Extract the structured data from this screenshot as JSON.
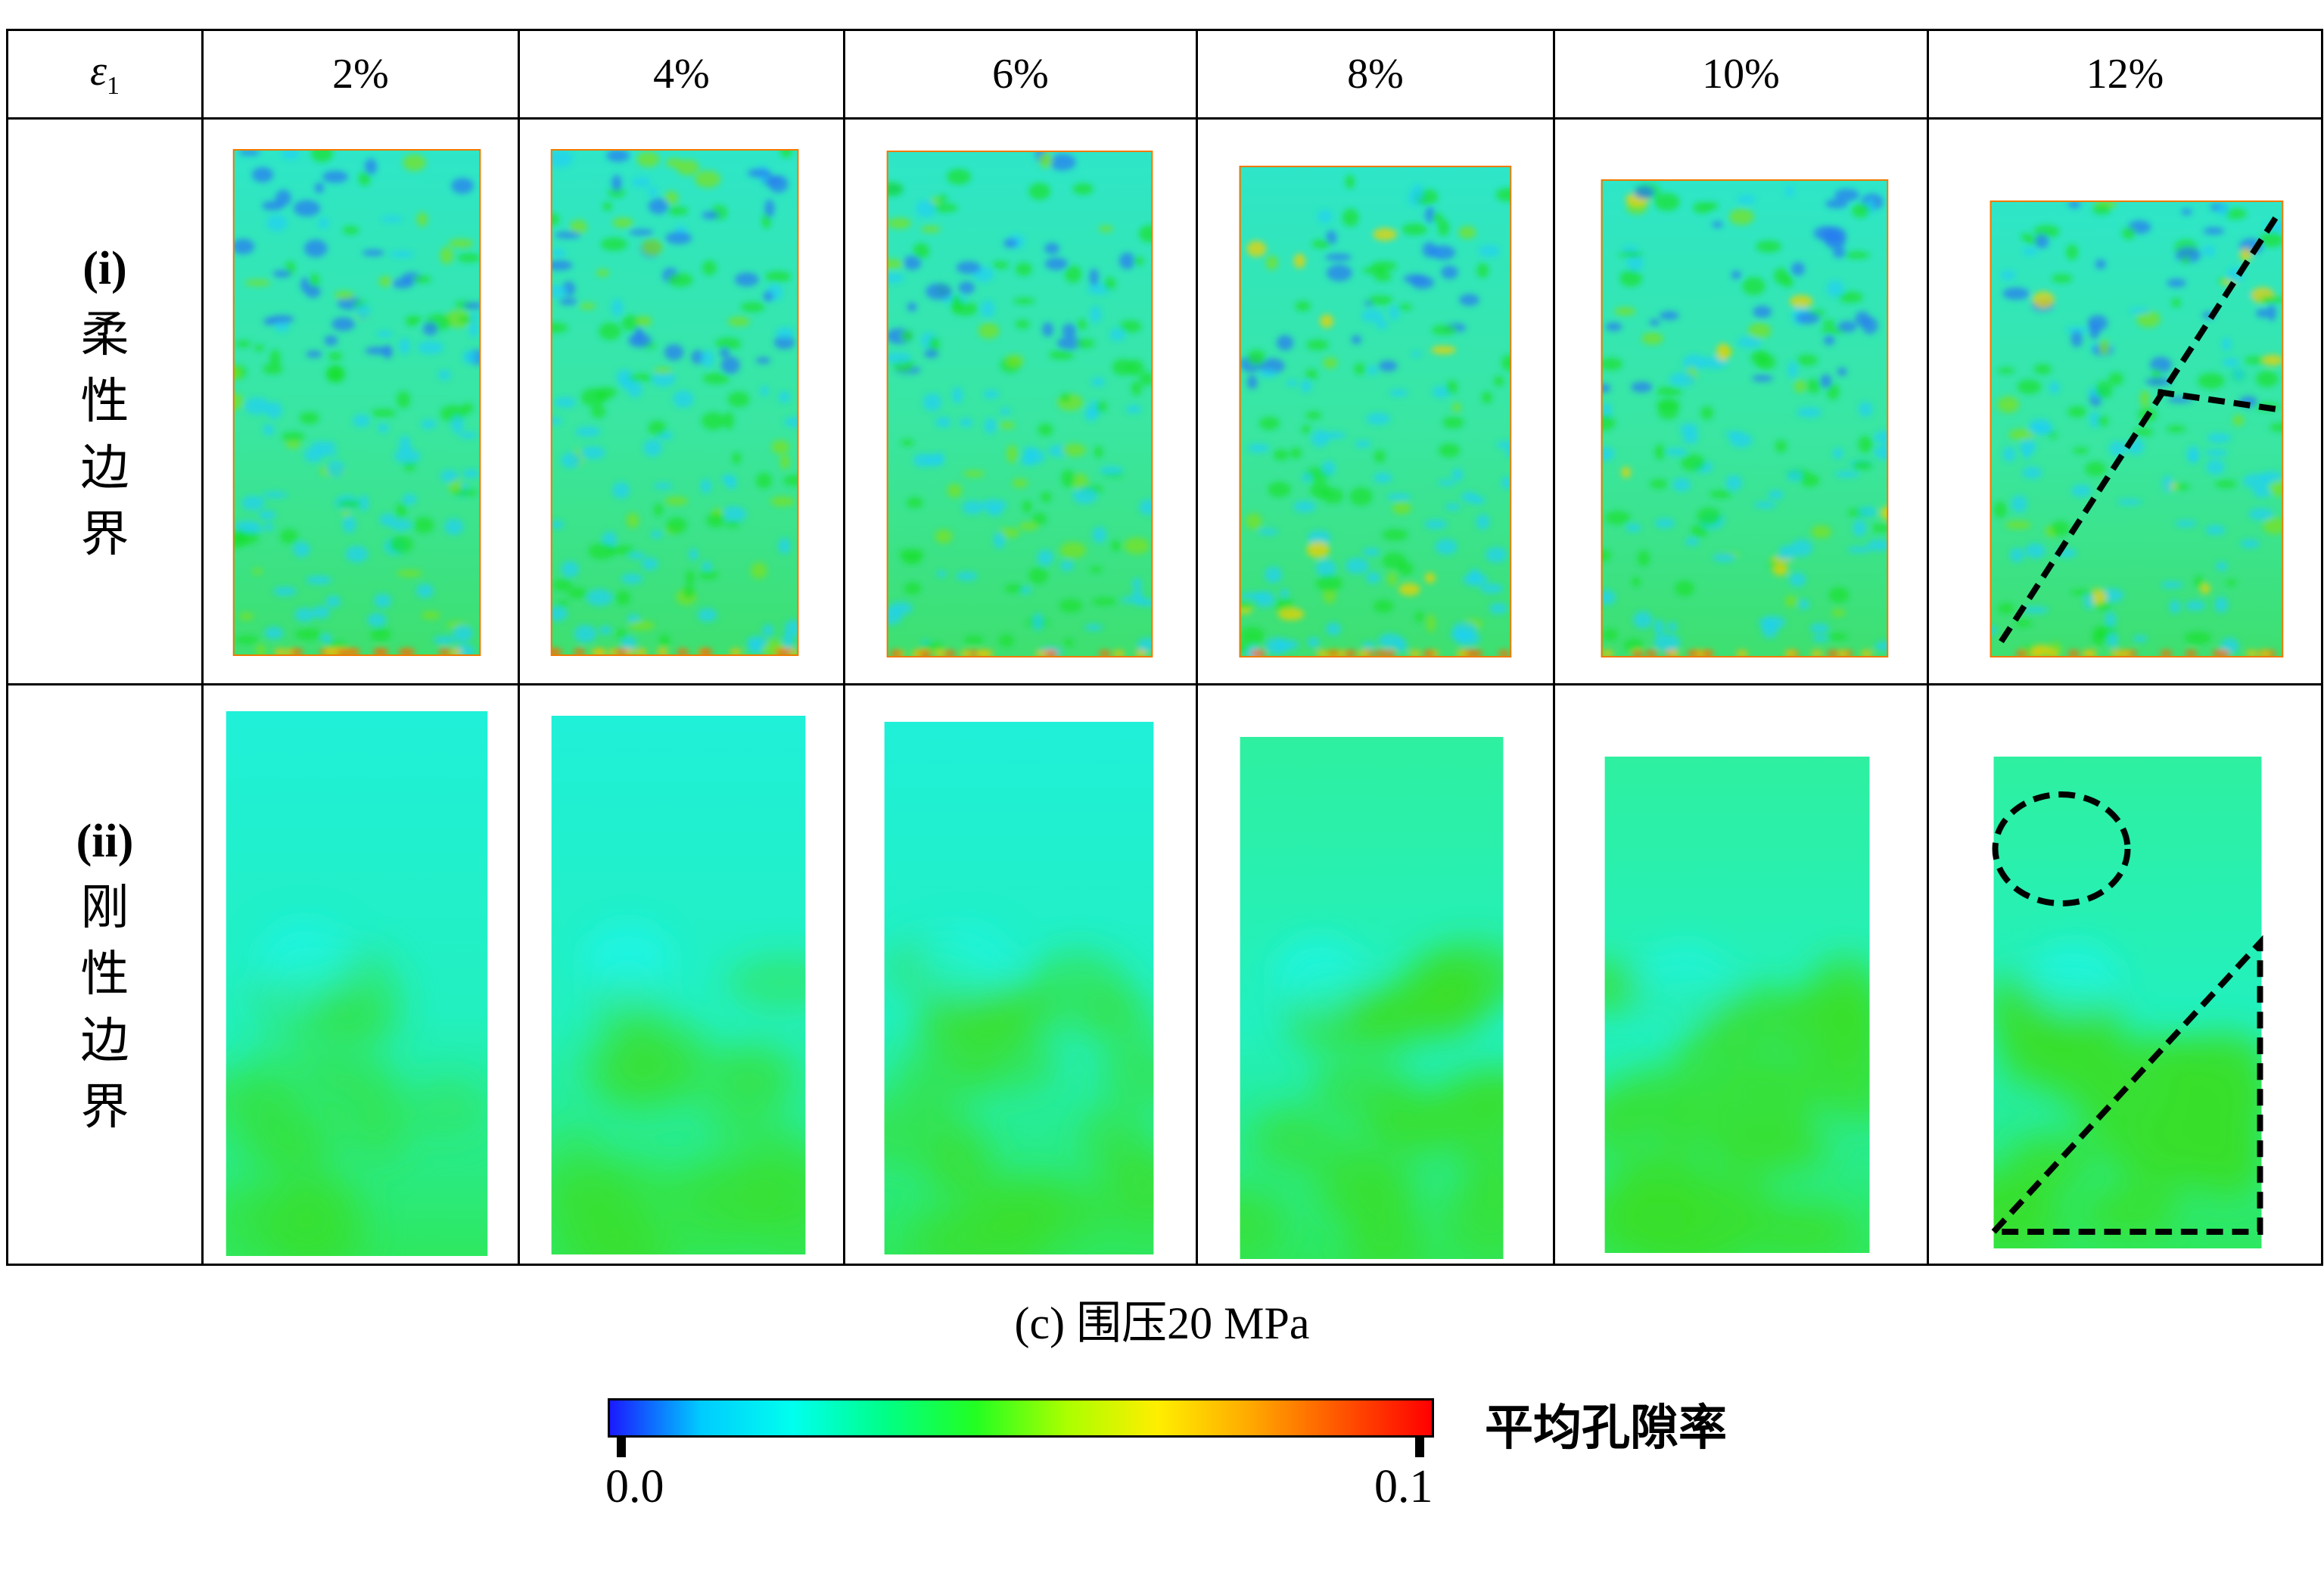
{
  "header": {
    "axis_symbol": "ε",
    "axis_subscript": "1",
    "strains": [
      "2%",
      "4%",
      "6%",
      "8%",
      "10%",
      "12%"
    ]
  },
  "rows": [
    {
      "roman": "(i)",
      "label": [
        "柔",
        "性",
        "边",
        "界"
      ]
    },
    {
      "roman": "(ii)",
      "label": [
        "刚",
        "性",
        "边",
        "界"
      ]
    }
  ],
  "caption": "(c) 围压20 MPa",
  "colorbar": {
    "title": "平均孔隙率",
    "min_label": "0.0",
    "max_label": "0.1",
    "min": 0.0,
    "max": 0.1,
    "colors": [
      "#1a1aff",
      "#00ccff",
      "#00ffee",
      "#00ff88",
      "#22ff22",
      "#aaff00",
      "#ffee00",
      "#ffaa00",
      "#ff5500",
      "#ff0000"
    ]
  },
  "annotations": {
    "flexible_12": "dashed lines marking shear band",
    "rigid_12": "dashed ellipse and dashed triangle"
  }
}
